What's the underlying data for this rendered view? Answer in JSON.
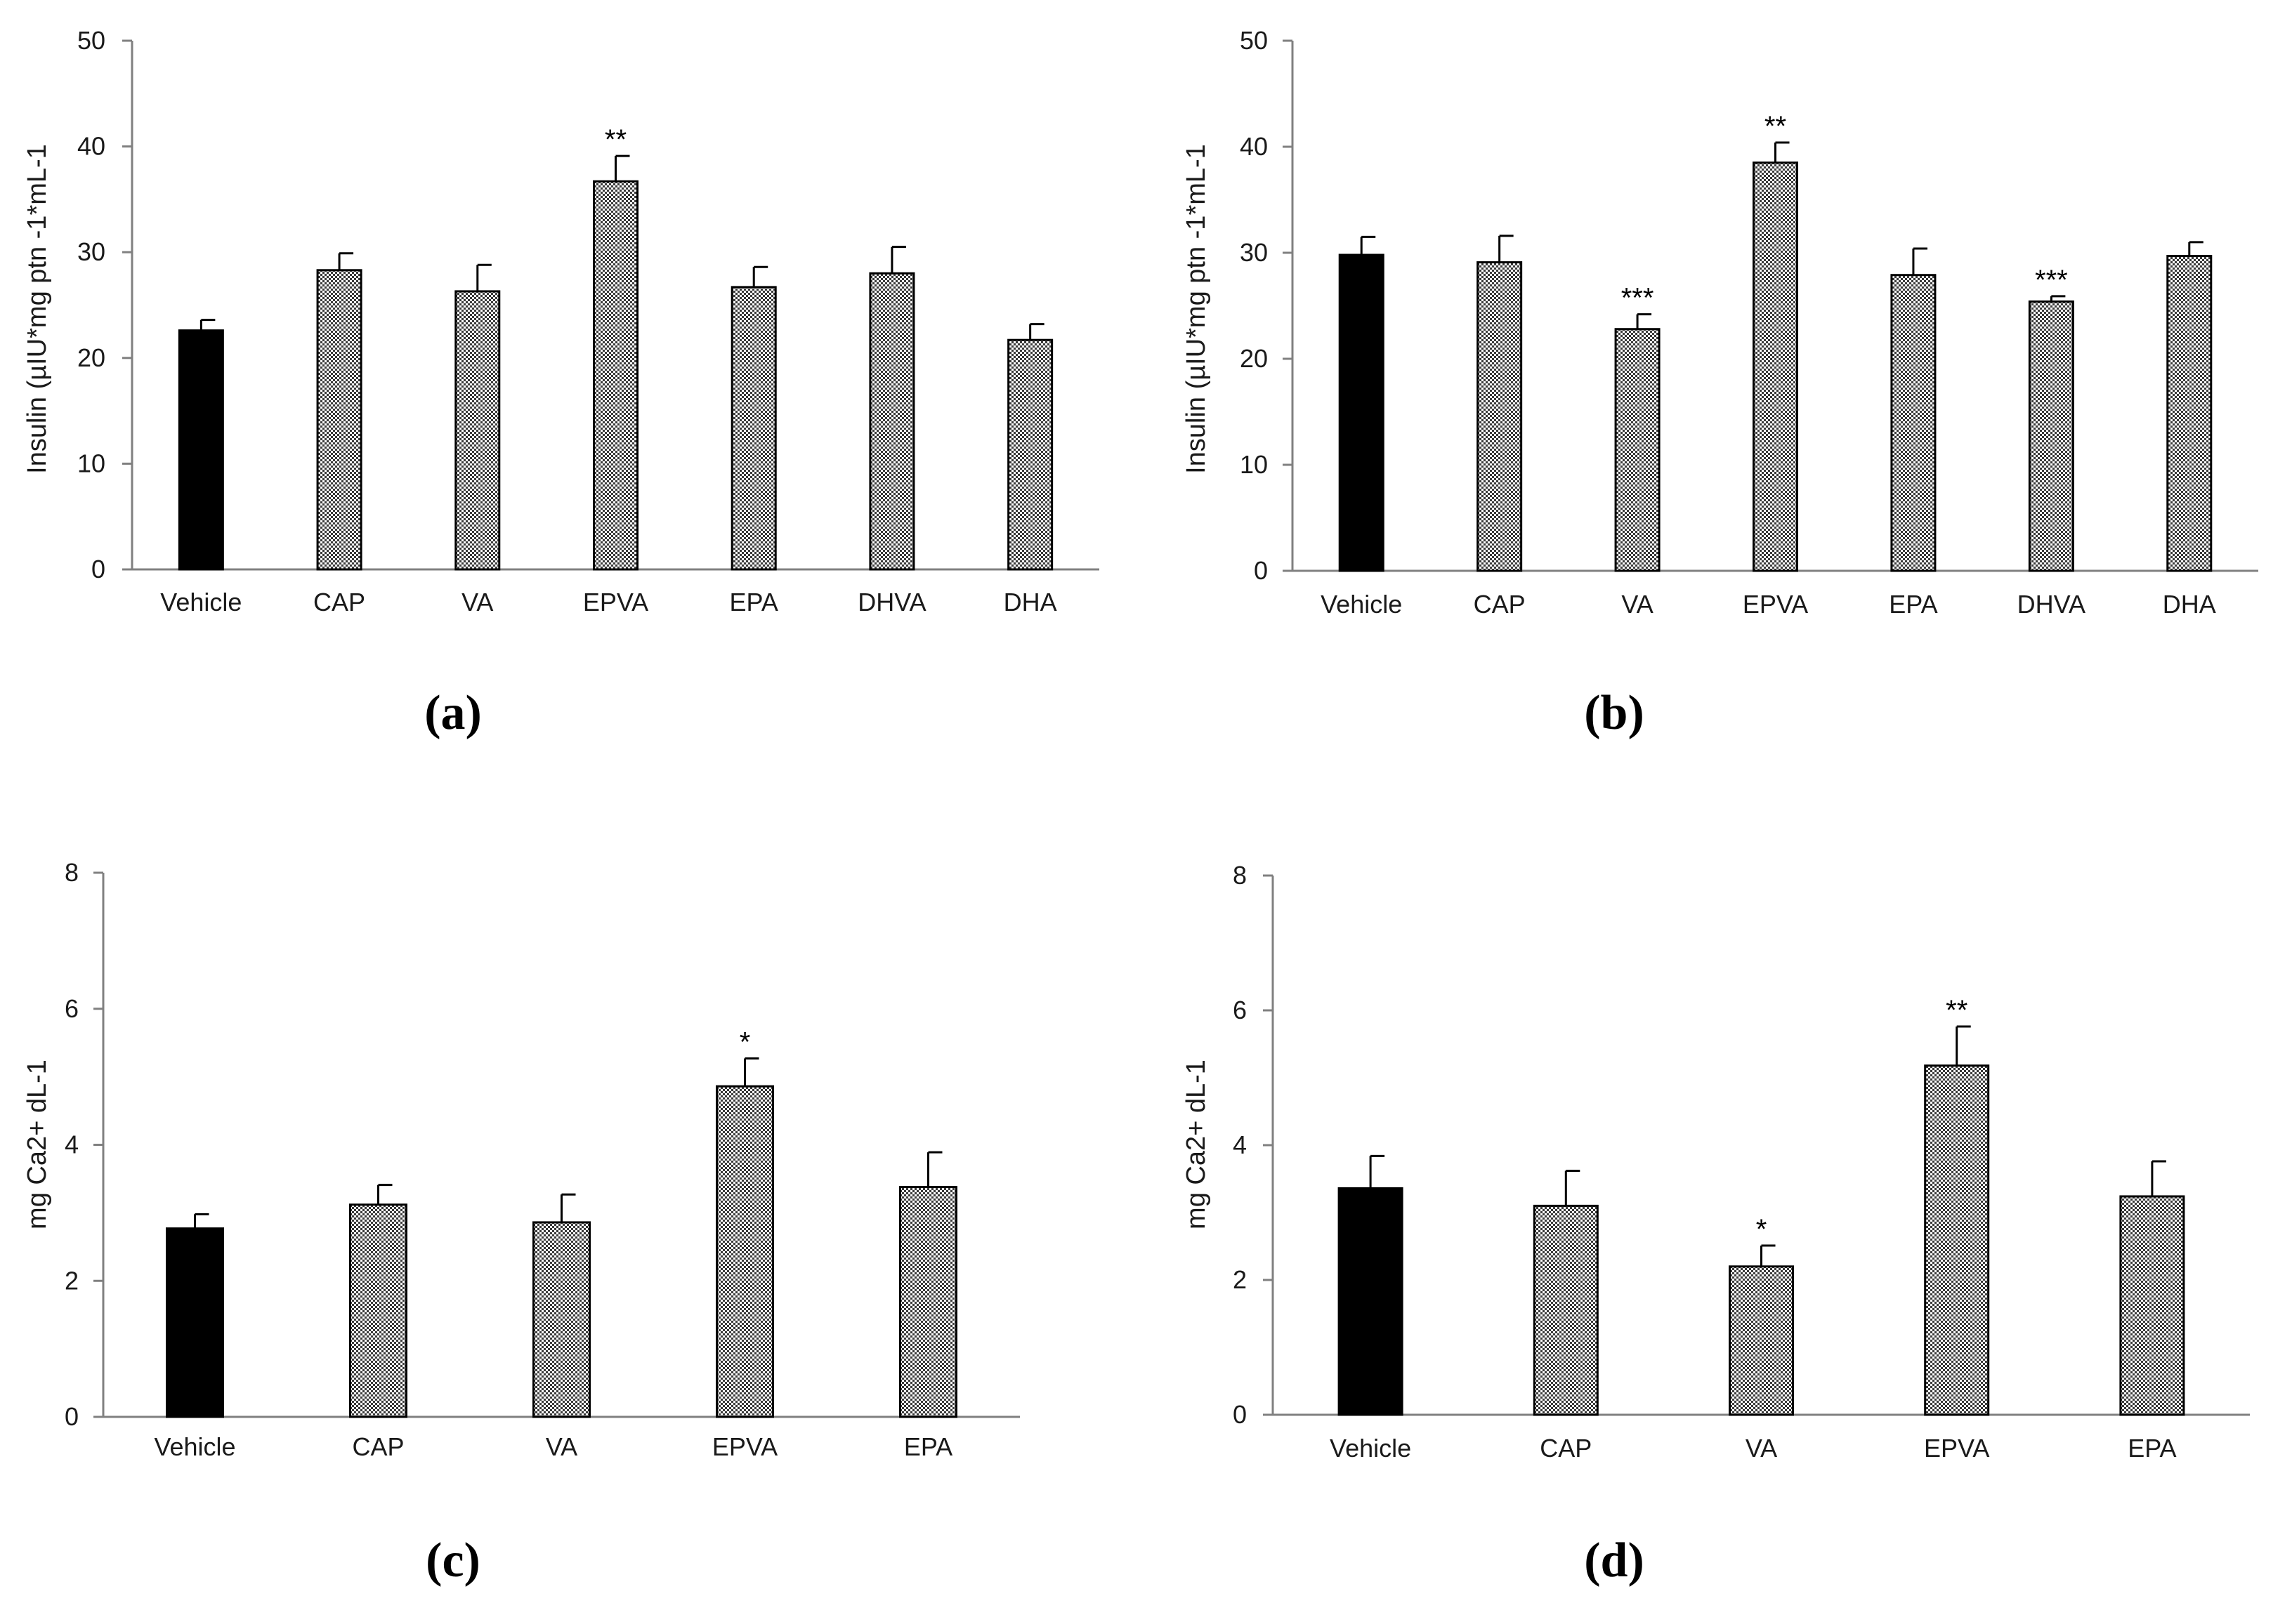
{
  "chart_data": [
    {
      "panel": "(a)",
      "type": "bar",
      "ylabel": "Insulin (µIU*mg ptn -1*mL-1",
      "ylim": [
        0,
        50
      ],
      "yticks": [
        "0",
        "10",
        "20",
        "30",
        "40",
        "50"
      ],
      "categories": [
        "Vehicle",
        "CAP",
        "VA",
        "EPVA",
        "EPA",
        "DHVA",
        "DHA"
      ],
      "values": [
        22.6,
        28.3,
        26.3,
        36.7,
        26.7,
        28.0,
        21.7
      ],
      "errors": [
        1.0,
        1.6,
        2.5,
        2.4,
        1.9,
        2.5,
        1.5
      ],
      "significance": [
        "",
        "",
        "",
        "**",
        "",
        "",
        ""
      ],
      "colors": [
        "#000000",
        "#bdbdbd",
        "#bdbdbd",
        "#bdbdbd",
        "#bdbdbd",
        "#bdbdbd",
        "#bdbdbd"
      ]
    },
    {
      "panel": "(b)",
      "type": "bar",
      "ylabel": "Insulin (µIU*mg ptn -1*mL-1",
      "ylim": [
        0,
        50
      ],
      "yticks": [
        "0",
        "10",
        "20",
        "30",
        "40",
        "50"
      ],
      "categories": [
        "Vehicle",
        "CAP",
        "VA",
        "EPVA",
        "EPA",
        "DHVA",
        "DHA"
      ],
      "values": [
        29.8,
        29.1,
        22.8,
        38.5,
        27.9,
        25.4,
        29.7
      ],
      "errors": [
        1.7,
        2.5,
        1.4,
        1.9,
        2.5,
        0.5,
        1.3
      ],
      "significance": [
        "",
        "",
        "***",
        "**",
        "",
        "***",
        ""
      ],
      "colors": [
        "#000000",
        "#bdbdbd",
        "#bdbdbd",
        "#bdbdbd",
        "#bdbdbd",
        "#bdbdbd",
        "#bdbdbd"
      ]
    },
    {
      "panel": "(c)",
      "type": "bar",
      "ylabel": "mg Ca2+ dL-1",
      "ylim": [
        0,
        8
      ],
      "yticks": [
        "0",
        "2",
        "4",
        "6",
        "8"
      ],
      "categories": [
        "Vehicle",
        "CAP",
        "VA",
        "EPVA",
        "EPA"
      ],
      "values": [
        2.77,
        3.12,
        2.86,
        4.86,
        3.38
      ],
      "errors": [
        0.21,
        0.29,
        0.41,
        0.41,
        0.51
      ],
      "significance": [
        "",
        "",
        "",
        "*",
        ""
      ],
      "colors": [
        "#000000",
        "#bdbdbd",
        "#bdbdbd",
        "#bdbdbd",
        "#bdbdbd"
      ]
    },
    {
      "panel": "(d)",
      "type": "bar",
      "ylabel": "mg Ca2+ dL-1",
      "ylim": [
        0,
        8
      ],
      "yticks": [
        "0",
        "2",
        "4",
        "6",
        "8"
      ],
      "categories": [
        "Vehicle",
        "CAP",
        "VA",
        "EPVA",
        "EPA"
      ],
      "values": [
        3.36,
        3.1,
        2.2,
        5.18,
        3.24
      ],
      "errors": [
        0.48,
        0.52,
        0.31,
        0.58,
        0.52
      ],
      "significance": [
        "",
        "",
        "*",
        "**",
        ""
      ],
      "colors": [
        "#000000",
        "#bdbdbd",
        "#bdbdbd",
        "#bdbdbd",
        "#bdbdbd"
      ]
    }
  ]
}
